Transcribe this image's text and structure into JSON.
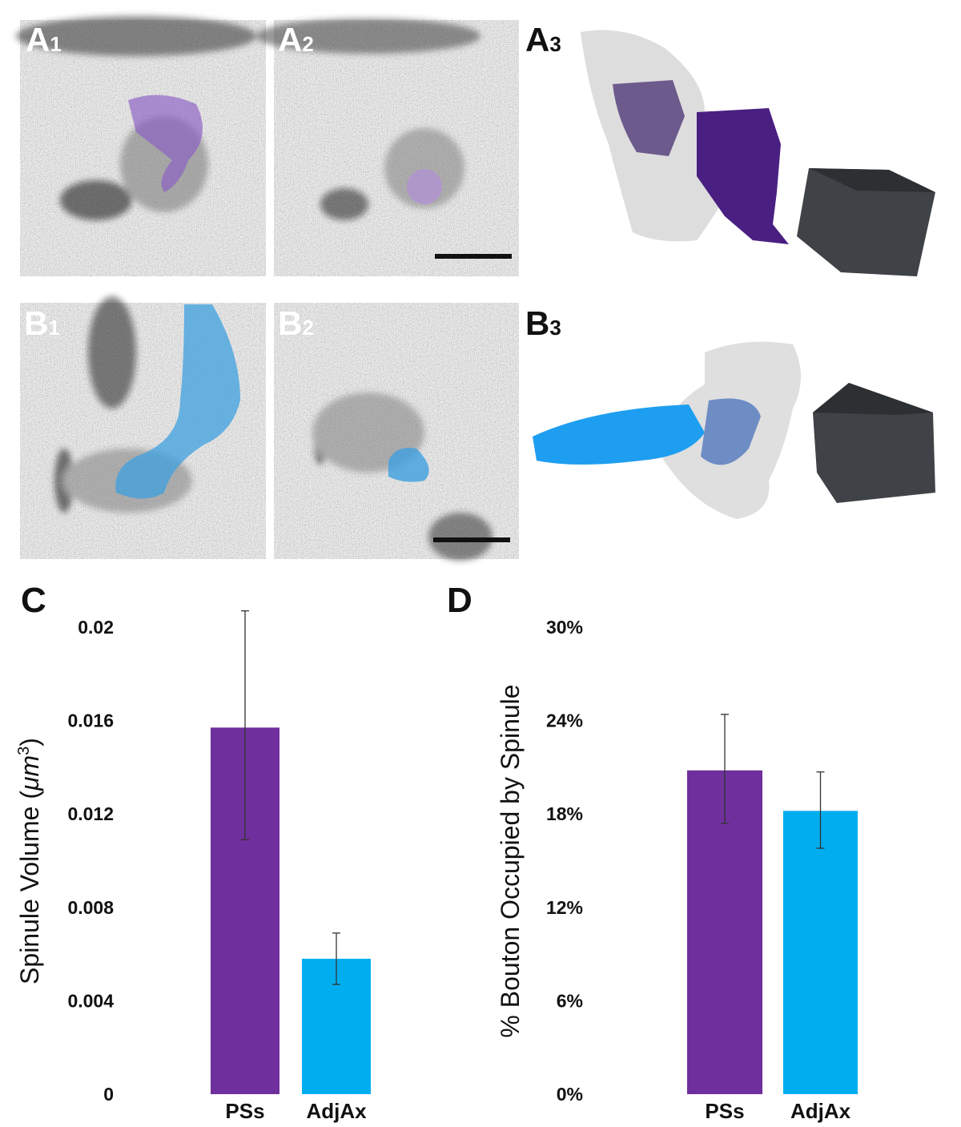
{
  "panels": {
    "A1": {
      "letter": "A",
      "sub": "1"
    },
    "A2": {
      "letter": "A",
      "sub": "2"
    },
    "A3": {
      "letter": "A",
      "sub": "3"
    },
    "B1": {
      "letter": "B",
      "sub": "1"
    },
    "B2": {
      "letter": "B",
      "sub": "2"
    },
    "B3": {
      "letter": "B",
      "sub": "3"
    },
    "C": {
      "letter": "C"
    },
    "D": {
      "letter": "D"
    }
  },
  "colors": {
    "PSs": "#6f2f9c",
    "AdjAx": "#00aeef",
    "cube": "#3f4246"
  },
  "chart_data": [
    {
      "panel": "C",
      "type": "bar",
      "categories": [
        "PSs",
        "AdjAx"
      ],
      "values": [
        0.0157,
        0.0058
      ],
      "error_bars": [
        [
          0.0109,
          0.0207
        ],
        [
          0.0047,
          0.0069
        ]
      ],
      "ylabel": "Spinule Volume (μm3)",
      "ylabel_main": "Spinule Volume (",
      "ylabel_unit": "μm",
      "ylabel_sup": "3",
      "ylabel_close": ")",
      "ylim": [
        0,
        0.02
      ],
      "yticks": [
        "0",
        "0.004",
        "0.008",
        "0.012",
        "0.016",
        "0.02"
      ],
      "ytick_values": [
        0,
        0.004,
        0.008,
        0.012,
        0.016,
        0.02
      ],
      "grid": false
    },
    {
      "panel": "D",
      "type": "bar",
      "categories": [
        "PSs",
        "AdjAx"
      ],
      "values": [
        20.8,
        18.2
      ],
      "error_bars": [
        [
          17.4,
          24.4
        ],
        [
          15.8,
          20.7
        ]
      ],
      "ylabel": "% Bouton Occupied by Spinule",
      "ylim": [
        0,
        30
      ],
      "yticks": [
        "0%",
        "6%",
        "12%",
        "18%",
        "24%",
        "30%"
      ],
      "ytick_values": [
        0,
        6,
        12,
        18,
        24,
        30
      ],
      "grid": false
    }
  ]
}
